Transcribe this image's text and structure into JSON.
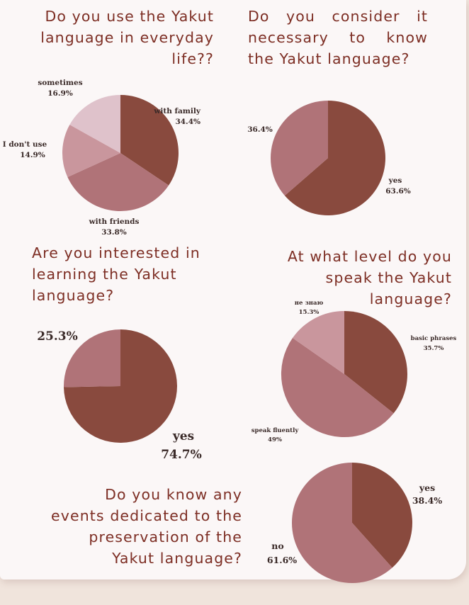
{
  "colors": {
    "title": "#7d2e24",
    "slice_dark": "#894a3e",
    "slice_mid": "#b07378",
    "slice_light": "#c9969d",
    "slice_pale": "#dfc2cb",
    "label": "#3a2a28"
  },
  "questions": {
    "q1": "Do you use the Yakut language in everyday life??",
    "q2": "Do you consider it necessary to know the Yakut language?",
    "q3": "Are you interested in learning the Yakut language?",
    "q4": "At what level do you speak the Yakut language?",
    "q5": "Do you know any events dedicated to the preservation of the Yakut language?"
  },
  "chart_data": [
    {
      "type": "pie",
      "title": "Do you use the Yakut language in everyday life??",
      "slices": [
        {
          "label": "with family",
          "value": 34.4,
          "display": "34.4%",
          "color": "#894a3e"
        },
        {
          "label": "with friends",
          "value": 33.8,
          "display": "33.8%",
          "color": "#b07378"
        },
        {
          "label": "I don't use",
          "value": 14.9,
          "display": "14.9%",
          "color": "#c9969d"
        },
        {
          "label": "sometimes",
          "value": 16.9,
          "display": "16.9%",
          "color": "#dfc2cb"
        }
      ]
    },
    {
      "type": "pie",
      "title": "Do you consider it necessary to know the Yakut language?",
      "slices": [
        {
          "label": "yes",
          "value": 63.6,
          "display": "63.6%",
          "color": "#894a3e"
        },
        {
          "label": "",
          "value": 36.4,
          "display": "36.4%",
          "color": "#b07378"
        }
      ]
    },
    {
      "type": "pie",
      "title": "Are you interested in learning the Yakut language?",
      "slices": [
        {
          "label": "yes",
          "value": 74.7,
          "display": "74.7%",
          "color": "#894a3e"
        },
        {
          "label": "",
          "value": 25.3,
          "display": "25.3%",
          "color": "#b07378"
        }
      ]
    },
    {
      "type": "pie",
      "title": "At what level do you speak the Yakut language?",
      "slices": [
        {
          "label": "basic phrases",
          "value": 35.7,
          "display": "35.7%",
          "color": "#894a3e"
        },
        {
          "label": "speak fluently",
          "value": 49,
          "display": "49%",
          "color": "#b07378"
        },
        {
          "label": "не знаю",
          "value": 15.3,
          "display": "15.3%",
          "color": "#c9969d"
        }
      ]
    },
    {
      "type": "pie",
      "title": "Do you know any events dedicated to the preservation of the Yakut language?",
      "slices": [
        {
          "label": "yes",
          "value": 38.4,
          "display": "38.4%",
          "color": "#894a3e"
        },
        {
          "label": "no",
          "value": 61.6,
          "display": "61.6%",
          "color": "#b07378"
        }
      ]
    }
  ]
}
